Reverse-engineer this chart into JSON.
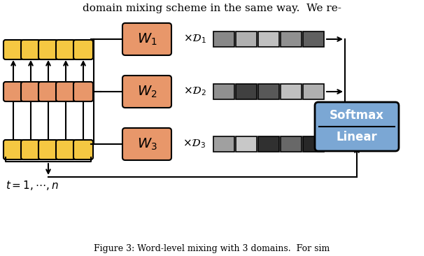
{
  "bg_color": "#ffffff",
  "yellow_color": "#F5C842",
  "orange_color": "#E8976A",
  "blue_color": "#7BA7D4",
  "gray_colors_row1": [
    "#888888",
    "#B0B0B0",
    "#C0C0C0",
    "#909090",
    "#606060"
  ],
  "gray_colors_row2": [
    "#909090",
    "#404040",
    "#585858",
    "#C0C0C0",
    "#B0B0B0"
  ],
  "gray_colors_row3": [
    "#A0A0A0",
    "#C8C8C8",
    "#303030",
    "#686868",
    "#282828"
  ],
  "title": "domain mixing scheme in the same way.  We re-",
  "caption": "Figure 3: Word-level mixing with 3 domains.  For sim",
  "softmax_label": "Softmax",
  "linear_label": "Linear"
}
